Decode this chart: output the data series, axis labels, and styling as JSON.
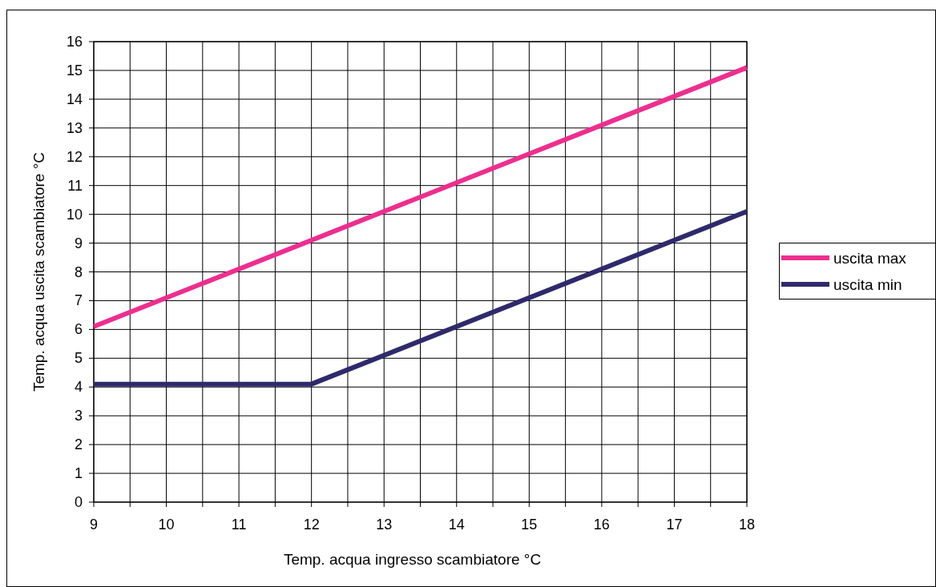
{
  "chart_data": {
    "type": "line",
    "xlabel": "Temp. acqua ingresso scambiatore °C",
    "ylabel": "Temp. acqua uscita scambiatore °C",
    "series": [
      {
        "name": "uscita max",
        "color": "#ec2f8f",
        "x": [
          9,
          18
        ],
        "values": [
          6.1,
          15.1
        ]
      },
      {
        "name": "uscita min",
        "color": "#2e2a6b",
        "x": [
          9,
          12,
          18
        ],
        "values": [
          4.1,
          4.1,
          10.1
        ]
      }
    ],
    "xlim": [
      9,
      18
    ],
    "xticks": [
      9,
      {
        "value": 9.5,
        "label": null
      },
      10,
      {
        "value": 10.5,
        "label": null
      },
      11,
      {
        "value": 11.5,
        "label": null
      },
      12,
      {
        "value": 12.5,
        "label": null
      },
      13,
      {
        "value": 13.5,
        "label": null
      },
      14,
      {
        "value": 14.5,
        "label": null
      },
      15,
      {
        "value": 15.5,
        "label": null
      },
      16,
      {
        "value": 16.5,
        "label": null
      },
      17,
      {
        "value": 17.5,
        "label": null
      },
      18
    ],
    "ylim": [
      0,
      16
    ],
    "yticks": [
      0,
      1,
      2,
      3,
      4,
      5,
      6,
      7,
      8,
      9,
      10,
      11,
      12,
      13,
      14,
      15,
      16
    ],
    "grid": true,
    "legend": "right",
    "line_style": "solid"
  }
}
